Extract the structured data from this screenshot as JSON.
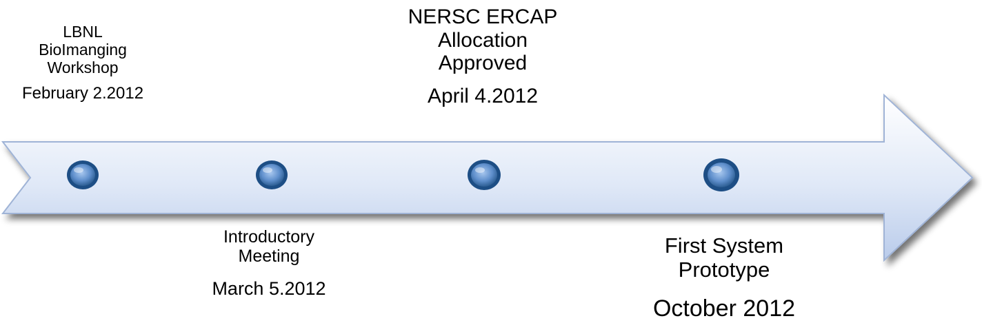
{
  "colors": {
    "arrow_fill_top": "#ffffff",
    "arrow_fill_bottom": "#b9cbea",
    "arrow_stroke": "#9fb3d6",
    "marker_outer": "#2d5e93",
    "marker_inner": "#6f9fd8",
    "text": "#000000"
  },
  "milestones": [
    {
      "title": "LBNL\nBioImanging\nWorkshop",
      "date": "February 2.2012",
      "icon": "circle-marker"
    },
    {
      "title": "Introductory\nMeeting",
      "date": "March 5.2012",
      "icon": "circle-marker"
    },
    {
      "title": "NERSC ERCAP\nAllocation\nApproved",
      "date": "April 4.2012",
      "icon": "circle-marker"
    },
    {
      "title": "First System\nPrototype",
      "date": "October 2012",
      "icon": "circle-marker"
    }
  ]
}
